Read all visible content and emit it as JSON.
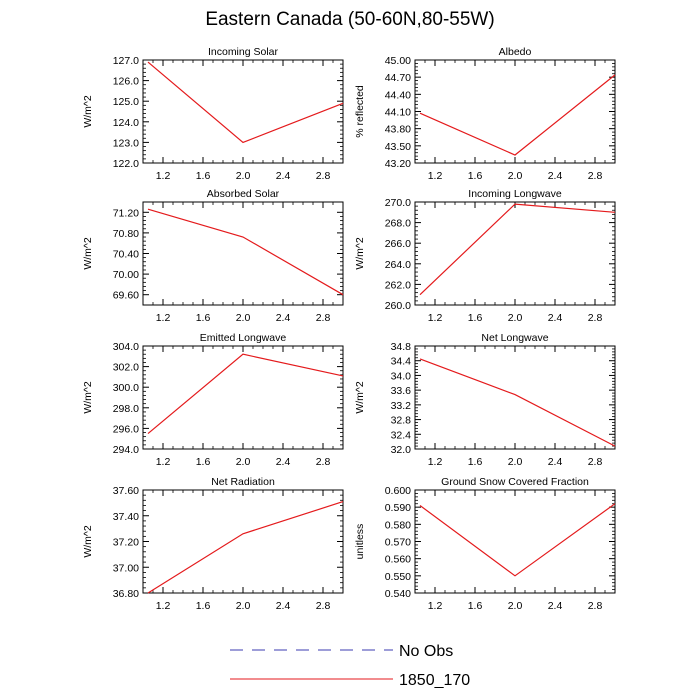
{
  "figure_title": "Eastern Canada (50-60N,80-55W)",
  "legend": [
    {
      "label": "No Obs",
      "color": "#3b3bb0",
      "dash": "dashed"
    },
    {
      "label": "1850_170",
      "color": "#e41a1c",
      "dash": "solid"
    }
  ],
  "chart_data": [
    {
      "type": "line",
      "title": "Incoming Solar",
      "ylabel": "W/m^2",
      "xlabel": "",
      "xlim": [
        1.0,
        3.0
      ],
      "xticks": [
        1.2,
        1.6,
        2.0,
        2.4,
        2.8
      ],
      "ylim": [
        122.0,
        127.0
      ],
      "yticks": [
        122.0,
        123.0,
        124.0,
        125.0,
        126.0,
        127.0
      ],
      "ydecimals": 1,
      "x": [
        1.05,
        2.0,
        3.0
      ],
      "series": [
        {
          "name": "1850_170",
          "color": "#e41a1c",
          "values": [
            126.9,
            123.0,
            124.9
          ]
        }
      ]
    },
    {
      "type": "line",
      "title": "Albedo",
      "ylabel": "% reflected",
      "xlabel": "",
      "xlim": [
        1.0,
        3.0
      ],
      "xticks": [
        1.2,
        1.6,
        2.0,
        2.4,
        2.8
      ],
      "ylim": [
        43.2,
        45.0
      ],
      "yticks": [
        43.2,
        43.5,
        43.8,
        44.1,
        44.4,
        44.7,
        45.0
      ],
      "ydecimals": 2,
      "x": [
        1.05,
        2.0,
        3.0
      ],
      "series": [
        {
          "name": "1850_170",
          "color": "#e41a1c",
          "values": [
            44.07,
            43.34,
            44.74
          ]
        }
      ]
    },
    {
      "type": "line",
      "title": "Absorbed Solar",
      "ylabel": "W/m^2",
      "xlabel": "",
      "xlim": [
        1.0,
        3.0
      ],
      "xticks": [
        1.2,
        1.6,
        2.0,
        2.4,
        2.8
      ],
      "ylim": [
        69.4,
        71.4
      ],
      "yticks": [
        69.6,
        70.0,
        70.4,
        70.8,
        71.2
      ],
      "ydecimals": 2,
      "x": [
        1.05,
        2.0,
        3.0
      ],
      "series": [
        {
          "name": "1850_170",
          "color": "#e41a1c",
          "values": [
            71.26,
            70.72,
            69.6
          ]
        }
      ]
    },
    {
      "type": "line",
      "title": "Incoming Longwave",
      "ylabel": "W/m^2",
      "xlabel": "",
      "xlim": [
        1.0,
        3.0
      ],
      "xticks": [
        1.2,
        1.6,
        2.0,
        2.4,
        2.8
      ],
      "ylim": [
        260.0,
        270.0
      ],
      "yticks": [
        260.0,
        262.0,
        264.0,
        266.0,
        268.0,
        270.0
      ],
      "ydecimals": 1,
      "x": [
        1.05,
        2.0,
        3.0
      ],
      "series": [
        {
          "name": "1850_170",
          "color": "#e41a1c",
          "values": [
            261.0,
            269.8,
            269.0
          ]
        }
      ]
    },
    {
      "type": "line",
      "title": "Emitted Longwave",
      "ylabel": "W/m^2",
      "xlabel": "",
      "xlim": [
        1.0,
        3.0
      ],
      "xticks": [
        1.2,
        1.6,
        2.0,
        2.4,
        2.8
      ],
      "ylim": [
        294.0,
        304.0
      ],
      "yticks": [
        294.0,
        296.0,
        298.0,
        300.0,
        302.0,
        304.0
      ],
      "ydecimals": 1,
      "x": [
        1.05,
        2.0,
        3.0
      ],
      "series": [
        {
          "name": "1850_170",
          "color": "#e41a1c",
          "values": [
            295.5,
            303.2,
            301.1
          ]
        }
      ]
    },
    {
      "type": "line",
      "title": "Net Longwave",
      "ylabel": "W/m^2",
      "xlabel": "",
      "xlim": [
        1.0,
        3.0
      ],
      "xticks": [
        1.2,
        1.6,
        2.0,
        2.4,
        2.8
      ],
      "ylim": [
        32.0,
        34.8
      ],
      "yticks": [
        32.0,
        32.4,
        32.8,
        33.2,
        33.6,
        34.0,
        34.4,
        34.8
      ],
      "ydecimals": 1,
      "x": [
        1.05,
        2.0,
        3.0
      ],
      "series": [
        {
          "name": "1850_170",
          "color": "#e41a1c",
          "values": [
            34.45,
            33.48,
            32.08
          ]
        }
      ]
    },
    {
      "type": "line",
      "title": "Net Radiation",
      "ylabel": "W/m^2",
      "xlabel": "",
      "xlim": [
        1.0,
        3.0
      ],
      "xticks": [
        1.2,
        1.6,
        2.0,
        2.4,
        2.8
      ],
      "ylim": [
        36.8,
        37.6
      ],
      "yticks": [
        36.8,
        37.0,
        37.2,
        37.4,
        37.6
      ],
      "ydecimals": 2,
      "x": [
        1.05,
        2.0,
        3.0
      ],
      "series": [
        {
          "name": "1850_170",
          "color": "#e41a1c",
          "values": [
            36.8,
            37.26,
            37.51
          ]
        }
      ]
    },
    {
      "type": "line",
      "title": "Ground Snow Covered Fraction",
      "ylabel": "unitless",
      "xlabel": "",
      "xlim": [
        1.0,
        3.0
      ],
      "xticks": [
        1.2,
        1.6,
        2.0,
        2.4,
        2.8
      ],
      "ylim": [
        0.54,
        0.6
      ],
      "yticks": [
        0.54,
        0.55,
        0.56,
        0.57,
        0.58,
        0.59,
        0.6
      ],
      "ydecimals": 3,
      "x": [
        1.05,
        2.0,
        3.0
      ],
      "series": [
        {
          "name": "1850_170",
          "color": "#e41a1c",
          "values": [
            0.591,
            0.55,
            0.592
          ]
        }
      ]
    }
  ]
}
